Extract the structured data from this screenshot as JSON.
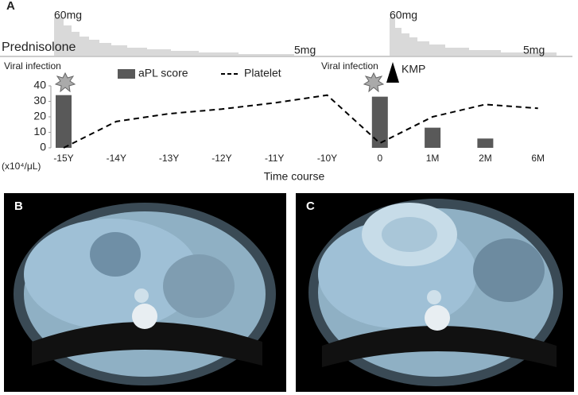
{
  "panel_labels": [
    "A",
    "B",
    "C"
  ],
  "chart_data": {
    "type": "bar",
    "annotations": {
      "dose_top_1": "60mg",
      "drug": "Prednisolone",
      "dose_low_1": "5mg",
      "dose_top_2": "60mg",
      "dose_low_2": "5mg",
      "event_1": "Viral infection",
      "event_2": "Viral infection",
      "treatment": "KMP"
    },
    "y_unit": "(x10⁴/μL)",
    "x_label": "Time course",
    "categories": [
      "-15Y",
      "-14Y",
      "-13Y",
      "-12Y",
      "-11Y",
      "-10Y",
      "0",
      "1M",
      "2M",
      "6M"
    ],
    "series": [
      {
        "name": "aPL score",
        "type": "bar",
        "color": "#595959",
        "values": [
          34,
          null,
          null,
          null,
          null,
          null,
          33,
          13,
          6,
          null
        ]
      },
      {
        "name": "Platelet",
        "type": "line",
        "color": "#000000",
        "dashed": true,
        "values": [
          0,
          17,
          22,
          25,
          29,
          34,
          3,
          20,
          28,
          25.5
        ]
      }
    ],
    "ylim": [
      0,
      40
    ],
    "yticks": [
      0,
      10,
      20,
      30,
      40
    ]
  }
}
